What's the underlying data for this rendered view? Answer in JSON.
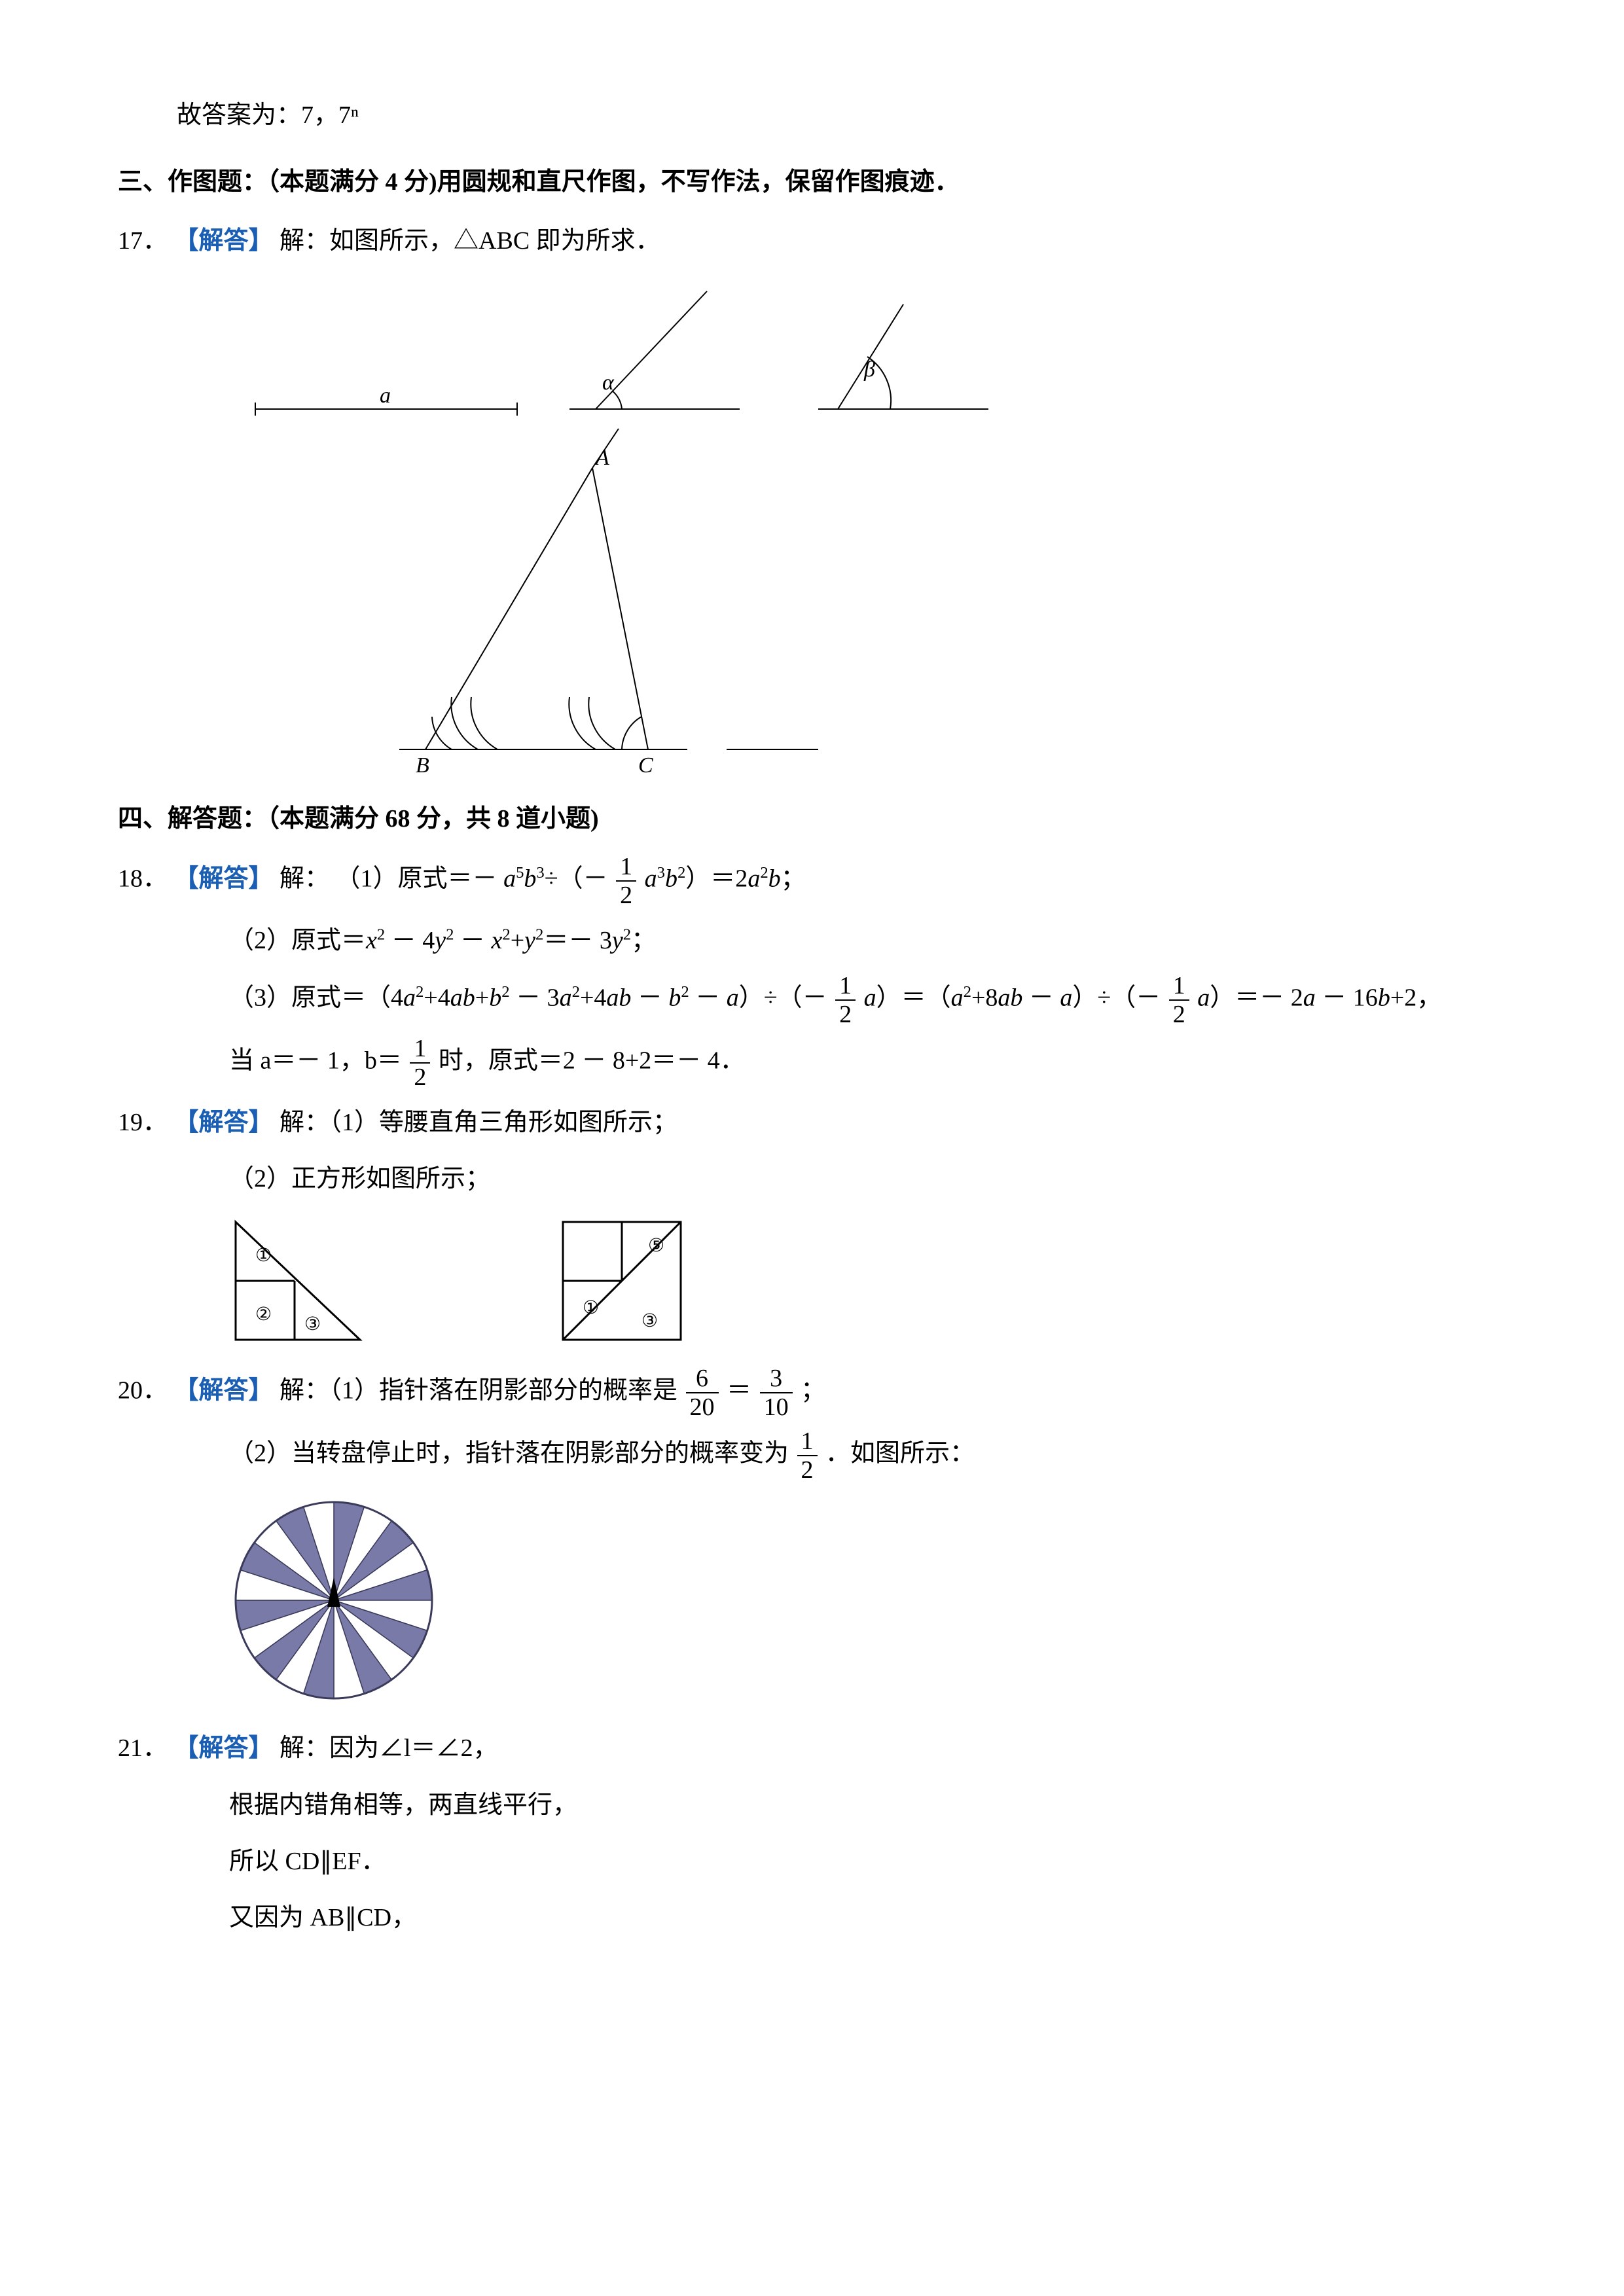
{
  "top_note": "故答案为：7，7ⁿ",
  "section3": {
    "heading": "三、作图题：（本题满分 4 分)用圆规和直尺作图，不写作法，保留作图痕迹．"
  },
  "q17": {
    "num": "17．",
    "label": "【解答】",
    "text": "解：如图所示，△ABC 即为所求．",
    "fig": {
      "a_label": "a",
      "alpha_label": "α",
      "beta_label": "β",
      "A": "A",
      "B": "B",
      "C": "C",
      "stroke": "#000000",
      "stroke_width": 2
    }
  },
  "section4": {
    "heading": "四、解答题：（本题满分 68 分，共 8 道小题)"
  },
  "q18": {
    "num": "18．",
    "label": "【解答】",
    "intro": "解：",
    "p1_prefix": "（1）原式＝－ ",
    "p1_expr1": "a⁵b³÷（－",
    "p1_frac_n": "1",
    "p1_frac_d": "2",
    "p1_expr2": "a³b²）＝2a²b；",
    "p2": "（2）原式＝x² － 4y² － x²+y²＝－ 3y²；",
    "p3_a": "（3）原式＝（4a²+4ab+b² － 3a²+4ab － b² － a）÷（－",
    "p3_frac1_n": "1",
    "p3_frac1_d": "2",
    "p3_b": "a）＝（a²+8ab － a）÷（－",
    "p3_frac2_n": "1",
    "p3_frac2_d": "2",
    "p3_c": "a）＝－ 2a － 16b+2，",
    "p4_a": "当 a＝－ 1，b＝",
    "p4_frac_n": "1",
    "p4_frac_d": "2",
    "p4_b": "时，原式＝2 － 8+2＝－ 4．"
  },
  "q19": {
    "num": "19．",
    "label": "【解答】",
    "p1": "解：（1）等腰直角三角形如图所示；",
    "p2": "（2）正方形如图所示；",
    "fig_stroke": "#000000"
  },
  "q20": {
    "num": "20．",
    "label": "【解答】",
    "p1_a": "解：（1）指针落在阴影部分的概率是",
    "p1_f1n": "6",
    "p1_f1d": "20",
    "p1_eq": "＝",
    "p1_f2n": "3",
    "p1_f2d": "10",
    "p1_b": "；",
    "p2_a": "（2）当转盘停止时，指针落在阴影部分的概率变为",
    "p2_fn": "1",
    "p2_fd": "2",
    "p2_b": "．如图所示：",
    "wheel": {
      "sectors": 20,
      "radius": 150,
      "colors_pattern": [
        "#7a7aa8",
        "#ffffff"
      ],
      "outline": "#3a3a5a",
      "pointer_color": "#000000"
    }
  },
  "q21": {
    "num": "21．",
    "label": "【解答】",
    "p1": "解：因为∠l＝∠2，",
    "p2": "根据内错角相等，两直线平行，",
    "p3": "所以 CD∥EF．",
    "p4": "又因为 AB∥CD，"
  }
}
